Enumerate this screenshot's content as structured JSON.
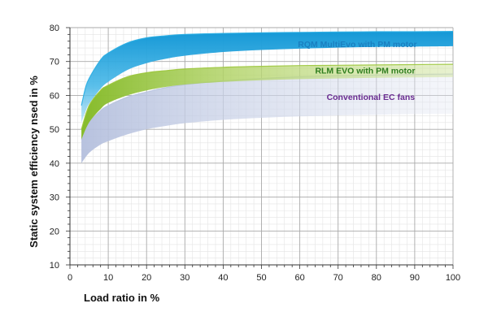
{
  "chart_data": {
    "type": "area",
    "xlabel": "Load ratio in %",
    "ylabel": "Static system efficiency nsed in %",
    "xlim": [
      0,
      100
    ],
    "ylim": [
      10,
      80
    ],
    "x_ticks": [
      0,
      10,
      20,
      30,
      40,
      50,
      60,
      70,
      80,
      90,
      100
    ],
    "y_ticks": [
      10,
      20,
      30,
      40,
      50,
      60,
      70,
      80
    ],
    "grid": true,
    "series": [
      {
        "name": "Conventional EC fans",
        "color": "#6a2c91",
        "band_color": "#b7c3de",
        "upper": {
          "x": [
            3,
            5,
            8,
            10,
            15,
            20,
            25,
            30,
            40,
            50,
            60,
            70,
            80,
            90,
            100
          ],
          "y": [
            47,
            52,
            55.5,
            57,
            59.5,
            61,
            62.3,
            63.2,
            64.3,
            65,
            65.5,
            65.8,
            66,
            66.2,
            66.3
          ]
        },
        "lower": {
          "x": [
            3,
            5,
            8,
            10,
            15,
            20,
            25,
            30,
            40,
            50,
            60,
            70,
            80,
            90,
            100
          ],
          "y": [
            40,
            43,
            45.5,
            46.5,
            48.5,
            50,
            51,
            51.8,
            52.8,
            53.4,
            53.8,
            54.1,
            54.3,
            54.5,
            54.6
          ]
        }
      },
      {
        "name": "RLM EVO with PM motor",
        "color": "#2e7d1e",
        "band_color": "#9cc73c",
        "upper": {
          "x": [
            3,
            5,
            8,
            10,
            15,
            20,
            25,
            30,
            40,
            50,
            60,
            70,
            80,
            90,
            100
          ],
          "y": [
            50,
            57,
            61.5,
            63,
            65.5,
            66.7,
            67.3,
            67.8,
            68.3,
            68.6,
            68.8,
            68.9,
            69,
            69.1,
            69.2
          ]
        },
        "lower": {
          "x": [
            3,
            5,
            8,
            10,
            15,
            20,
            25,
            30,
            40,
            50,
            60,
            70,
            80,
            90,
            100
          ],
          "y": [
            47,
            52,
            56,
            57.8,
            60,
            61.5,
            62.5,
            63.2,
            64,
            64.5,
            64.8,
            65,
            65.2,
            65.3,
            65.4
          ]
        }
      },
      {
        "name": "RQM MultiEvo with PM motor",
        "color": "#1a7fc0",
        "band_color": "#2aaee3",
        "upper": {
          "x": [
            3,
            4,
            5,
            8,
            10,
            15,
            20,
            25,
            30,
            40,
            50,
            60,
            70,
            80,
            90,
            100
          ],
          "y": [
            57,
            62,
            65,
            70.5,
            72.5,
            75.5,
            77,
            77.6,
            78,
            78.3,
            78.5,
            78.6,
            78.7,
            78.8,
            78.8,
            78.9
          ]
        },
        "lower": {
          "x": [
            3,
            4,
            5,
            8,
            10,
            15,
            20,
            25,
            30,
            40,
            50,
            60,
            70,
            80,
            90,
            100
          ],
          "y": [
            52,
            55,
            57.5,
            62,
            64,
            67.5,
            69.5,
            70.8,
            71.7,
            72.8,
            73.4,
            73.8,
            74.1,
            74.3,
            74.4,
            74.5
          ]
        }
      }
    ]
  }
}
